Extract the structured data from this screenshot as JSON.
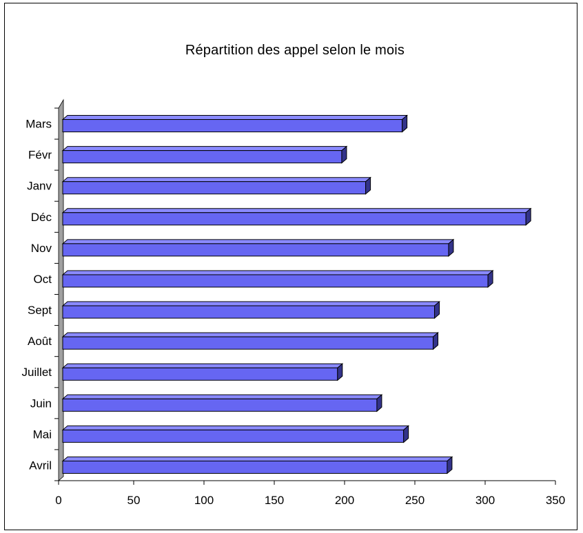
{
  "chart_data": {
    "type": "bar",
    "orientation": "horizontal",
    "title": "Répartition des appel selon le mois",
    "categories": [
      "Avril",
      "Mai",
      "Juin",
      "Juillet",
      "Août",
      "Sept",
      "Oct",
      "Nov",
      "Déc",
      "Janv",
      "Févr",
      "Mars"
    ],
    "values": [
      273,
      242,
      223,
      195,
      263,
      264,
      302,
      274,
      329,
      215,
      198,
      241
    ],
    "xlim": [
      0,
      350
    ],
    "xticks": [
      "0",
      "50",
      "100",
      "150",
      "200",
      "250",
      "300",
      "350"
    ],
    "xlabel": "",
    "ylabel": "",
    "legend": "none",
    "bar_color": "#6666f2",
    "style": "3d"
  }
}
